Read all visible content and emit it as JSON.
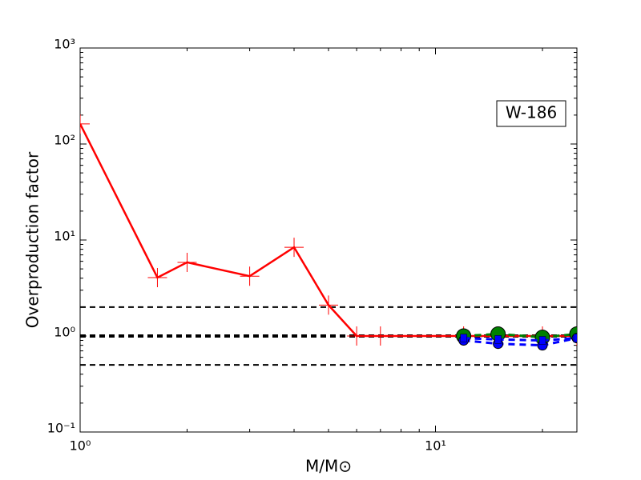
{
  "chart_data": {
    "type": "line",
    "xlabel": "M/M⊙",
    "ylabel": "Overproduction factor",
    "annotation": "W-186",
    "log_x": true,
    "log_y": true,
    "xlim": [
      1,
      25
    ],
    "ylim": [
      0.1,
      1000
    ],
    "xticks": [
      {
        "value": 1,
        "label": "10⁰"
      },
      {
        "value": 10,
        "label": "10¹"
      }
    ],
    "yticks": [
      {
        "value": 0.1,
        "label": "10⁻¹"
      },
      {
        "value": 1,
        "label": "10⁰"
      },
      {
        "value": 10,
        "label": "10¹"
      },
      {
        "value": 100,
        "label": "10²"
      },
      {
        "value": 1000,
        "label": "10³"
      }
    ],
    "reference_lines": [
      {
        "value": 2,
        "width": 2
      },
      {
        "value": 1,
        "width": 4
      },
      {
        "value": 0.5,
        "width": 2
      }
    ],
    "series": [
      {
        "color": "#ff0000",
        "marker": "plus",
        "dashed": false,
        "x": [
          1,
          1.65,
          2,
          3,
          4,
          5,
          6,
          7,
          12,
          15,
          20,
          25
        ],
        "values": [
          162,
          4.06,
          5.85,
          4.2,
          8.4,
          2.1,
          1.0,
          1.0,
          1.0,
          1.0,
          1.0,
          1.0
        ]
      },
      {
        "color": "#008000",
        "marker": "circle",
        "dashed": true,
        "x": [
          12,
          15,
          20,
          25
        ],
        "values": [
          1.0,
          1.05,
          0.97,
          1.05
        ]
      },
      {
        "color": "#0000ff",
        "marker": "circle",
        "dashed": true,
        "x": [
          12,
          15,
          20,
          25
        ],
        "values": [
          0.9,
          0.83,
          0.8,
          0.95
        ]
      },
      {
        "color": "#0000ff",
        "marker": "square",
        "dashed": true,
        "x": [
          12,
          15,
          20,
          25
        ],
        "values": [
          0.95,
          0.92,
          0.9,
          0.95
        ]
      }
    ]
  }
}
